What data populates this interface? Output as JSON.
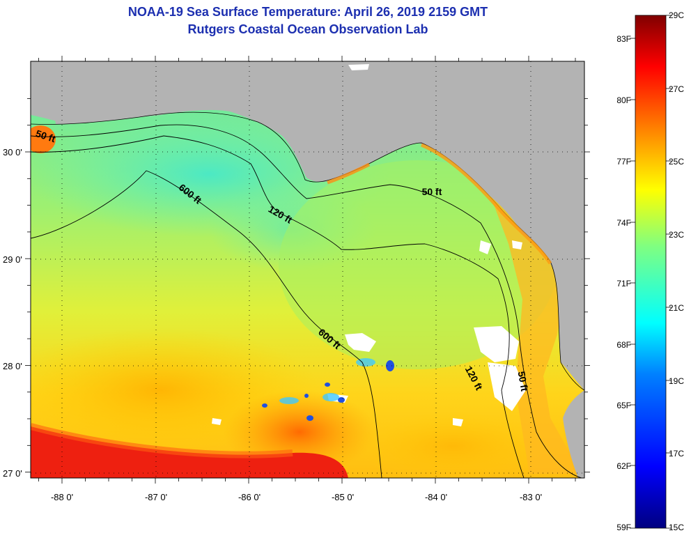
{
  "header": {
    "title": "NOAA-19 Sea Surface Temperature:  April 26, 2019 2159 GMT",
    "subtitle": "Rutgers Coastal Ocean Observation Lab"
  },
  "map": {
    "lon_labels": [
      "-88 0'",
      "-87 0'",
      "-86 0'",
      "-85 0'",
      "-84 0'",
      "-83 0'"
    ],
    "lat_labels": [
      "30 0'",
      "29 0'",
      "28 0'",
      "27 0'"
    ],
    "contours": [
      {
        "label": "50 ft"
      },
      {
        "label": "600 ft"
      },
      {
        "label": "120 ft"
      },
      {
        "label": "50 ft"
      },
      {
        "label": "600 ft"
      },
      {
        "label": "120 ft"
      },
      {
        "label": "50 ft"
      }
    ],
    "colors": {
      "land": "#b3b3b3",
      "cloud_mask": "#ffffff",
      "grid": "#000000"
    }
  },
  "colorbar": {
    "fahrenheit_labels": [
      "83F",
      "80F",
      "77F",
      "74F",
      "71F",
      "68F",
      "65F",
      "62F",
      "59F"
    ],
    "celsius_labels": [
      "29C",
      "27C",
      "25C",
      "23C",
      "21C",
      "19C",
      "17C",
      "15C"
    ],
    "range_c": [
      15,
      29
    ]
  }
}
